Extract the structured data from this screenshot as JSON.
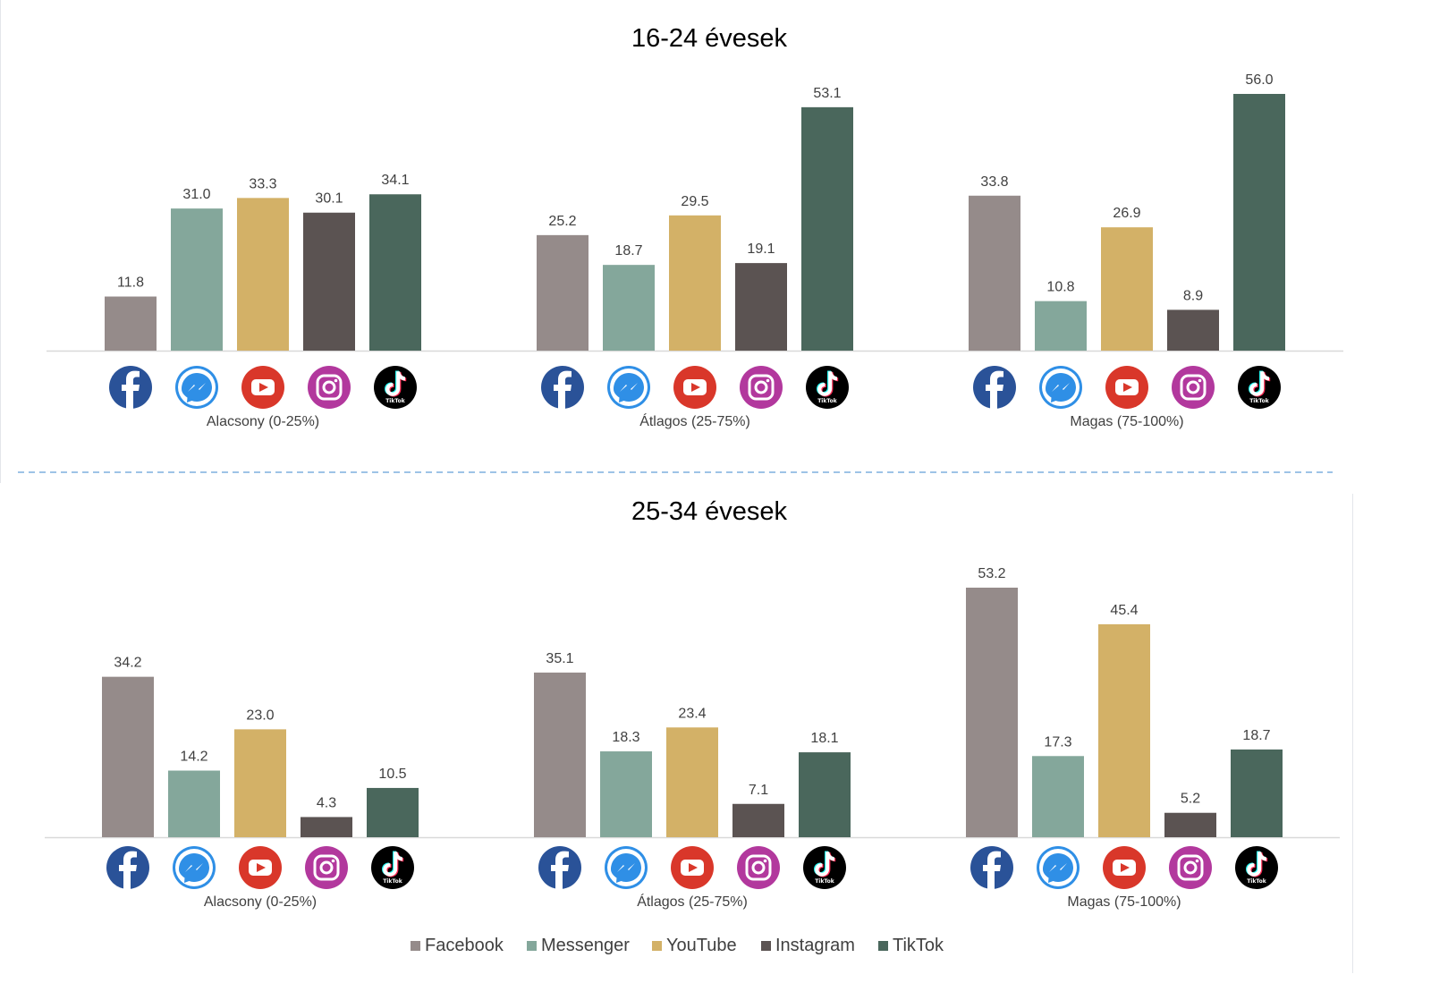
{
  "colors": {
    "Facebook": "#958b8a",
    "Messenger": "#84a79b",
    "YouTube": "#d3b167",
    "Instagram": "#5b5352",
    "TikTok": "#4a675c",
    "divider": "#9dc3e6",
    "axis": "#d9d9d9",
    "text": "#404040"
  },
  "legend": [
    "Facebook",
    "Messenger",
    "YouTube",
    "Instagram",
    "TikTok"
  ],
  "platform_icons": [
    "facebook-icon",
    "messenger-icon",
    "youtube-icon",
    "instagram-icon",
    "tiktok-icon"
  ],
  "chart_data": [
    {
      "type": "bar",
      "title": "16-24 évesek",
      "categories": [
        "Alacsony (0-25%)",
        "Átlagos (25-75%)",
        "Magas (75-100%)"
      ],
      "series": [
        {
          "name": "Facebook",
          "values": [
            11.8,
            25.2,
            33.8
          ]
        },
        {
          "name": "Messenger",
          "values": [
            31.0,
            18.7,
            10.8
          ]
        },
        {
          "name": "YouTube",
          "values": [
            33.3,
            29.5,
            26.9
          ]
        },
        {
          "name": "Instagram",
          "values": [
            30.1,
            19.1,
            8.9
          ]
        },
        {
          "name": "TikTok",
          "values": [
            34.1,
            53.1,
            56.0
          ]
        }
      ],
      "ylim": [
        0,
        56
      ],
      "grid": false,
      "data_labels": true
    },
    {
      "type": "bar",
      "title": "25-34 évesek",
      "categories": [
        "Alacsony (0-25%)",
        "Átlagos (25-75%)",
        "Magas (75-100%)"
      ],
      "series": [
        {
          "name": "Facebook",
          "values": [
            34.2,
            35.1,
            53.2
          ]
        },
        {
          "name": "Messenger",
          "values": [
            14.2,
            18.3,
            17.3
          ]
        },
        {
          "name": "YouTube",
          "values": [
            23.0,
            23.4,
            45.4
          ]
        },
        {
          "name": "Instagram",
          "values": [
            4.3,
            7.1,
            5.2
          ]
        },
        {
          "name": "TikTok",
          "values": [
            10.5,
            18.1,
            18.7
          ]
        }
      ],
      "ylim": [
        0,
        53.2
      ],
      "grid": false,
      "data_labels": true
    }
  ]
}
